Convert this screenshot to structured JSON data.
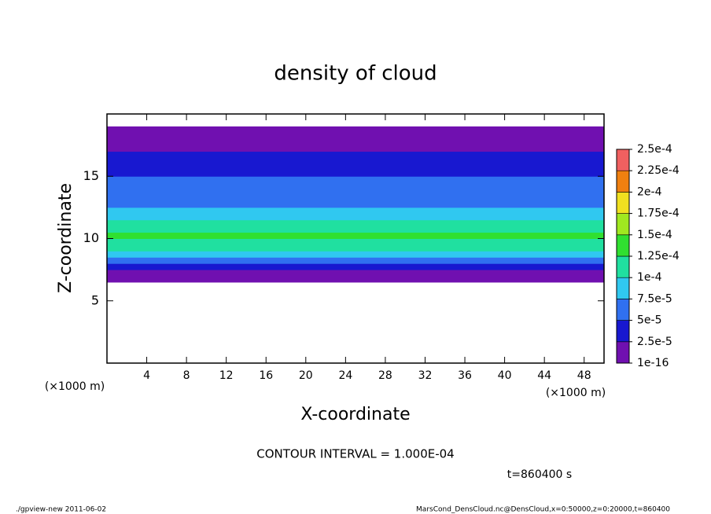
{
  "chart_data": {
    "type": "heatmap",
    "title": "density of cloud",
    "xlabel": "X-coordinate",
    "ylabel": "Z-coordinate",
    "x_unit_left": "(×1000 m)",
    "x_unit_right": "(×1000 m)",
    "contour_note": "CONTOUR INTERVAL = 1.000E-04",
    "time_label": "t=860400 s",
    "footer_left": "./gpview-new  2011-06-02",
    "footer_right": "MarsCond_DensCloud.nc@DensCloud,x=0:50000,z=0:20000,t=860400",
    "xlim": [
      0,
      50
    ],
    "ylim": [
      0,
      20
    ],
    "xticks": [
      4,
      8,
      12,
      16,
      20,
      24,
      28,
      32,
      36,
      40,
      44,
      48
    ],
    "yticks": [
      5,
      10,
      15
    ],
    "z_edges": [
      6.5,
      7,
      7.5,
      8,
      8.5,
      9,
      9.5,
      10,
      10.5,
      11,
      11.5,
      12,
      12.5,
      13,
      13.5,
      14,
      14.5,
      15,
      15.5,
      16,
      16.5,
      17,
      17.5,
      18,
      18.5,
      19
    ],
    "values": [
      1e-05,
      2e-05,
      4e-05,
      7e-05,
      9e-05,
      0.00011,
      0.00012,
      0.000125,
      0.000115,
      0.0001,
      8.5e-05,
      7.5e-05,
      6.5e-05,
      6e-05,
      5.5e-05,
      5e-05,
      5e-05,
      4.5e-05,
      4e-05,
      3.5e-05,
      2.5e-05,
      1.5e-05,
      1e-05,
      1e-05,
      1e-05
    ],
    "levels": [
      {
        "value": 1e-16,
        "label": "1e-16"
      },
      {
        "value": 2.5e-05,
        "label": "2.5e-5"
      },
      {
        "value": 5e-05,
        "label": "5e-5"
      },
      {
        "value": 7.5e-05,
        "label": "7.5e-5"
      },
      {
        "value": 0.0001,
        "label": "1e-4"
      },
      {
        "value": 0.000125,
        "label": "1.25e-4"
      },
      {
        "value": 0.00015,
        "label": "1.5e-4"
      },
      {
        "value": 0.000175,
        "label": "1.75e-4"
      },
      {
        "value": 0.0002,
        "label": "2e-4"
      },
      {
        "value": 0.000225,
        "label": "2.25e-4"
      },
      {
        "value": 0.00025,
        "label": "2.5e-4"
      }
    ],
    "colors": [
      "#7010b0",
      "#1818d0",
      "#3070f0",
      "#30c8f0",
      "#20e0a0",
      "#30e030",
      "#a0e820",
      "#f0e020",
      "#f08010",
      "#f06060"
    ]
  }
}
